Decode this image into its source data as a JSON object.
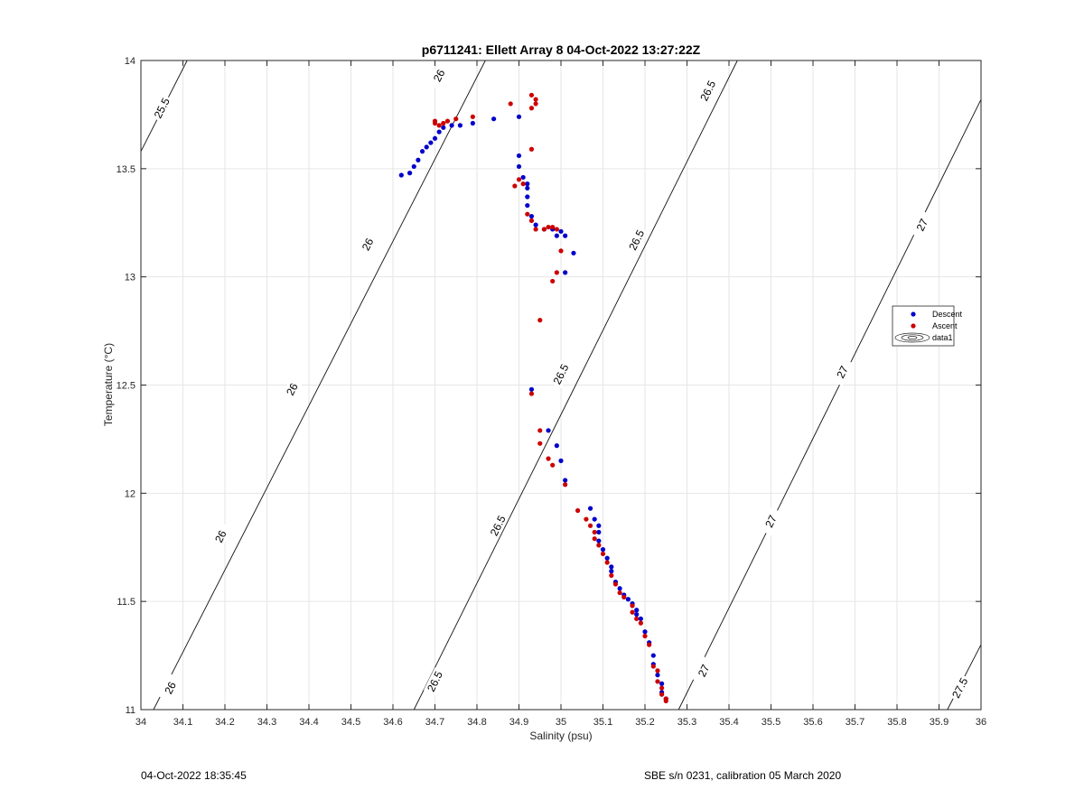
{
  "chart_data": {
    "type": "scatter",
    "title": "p6711241: Ellett Array 8 04-Oct-2022 13:27:22Z",
    "xlabel": "Salinity (psu)",
    "ylabel": "Temperature (°C)",
    "xlim": [
      34,
      36
    ],
    "ylim": [
      11,
      14
    ],
    "grid": true,
    "legend_position": "right",
    "x_ticks": [
      "34",
      "34.1",
      "34.2",
      "34.3",
      "34.4",
      "34.5",
      "34.6",
      "34.7",
      "34.8",
      "34.9",
      "35",
      "35.1",
      "35.2",
      "35.3",
      "35.4",
      "35.5",
      "35.6",
      "35.7",
      "35.8",
      "35.9",
      "36"
    ],
    "y_ticks": [
      "11",
      "11.5",
      "12",
      "12.5",
      "13",
      "13.5",
      "14"
    ],
    "legend": [
      "Descent",
      "Ascent",
      "data1"
    ],
    "series": [
      {
        "name": "Descent",
        "color": "#0000cc",
        "points": [
          [
            34.62,
            13.47
          ],
          [
            34.64,
            13.48
          ],
          [
            34.65,
            13.51
          ],
          [
            34.66,
            13.54
          ],
          [
            34.67,
            13.58
          ],
          [
            34.68,
            13.6
          ],
          [
            34.69,
            13.62
          ],
          [
            34.7,
            13.64
          ],
          [
            34.71,
            13.67
          ],
          [
            34.72,
            13.69
          ],
          [
            34.74,
            13.7
          ],
          [
            34.76,
            13.7
          ],
          [
            34.79,
            13.71
          ],
          [
            34.84,
            13.73
          ],
          [
            34.9,
            13.74
          ],
          [
            34.9,
            13.56
          ],
          [
            34.9,
            13.51
          ],
          [
            34.91,
            13.46
          ],
          [
            34.92,
            13.43
          ],
          [
            34.92,
            13.41
          ],
          [
            34.92,
            13.37
          ],
          [
            34.92,
            13.33
          ],
          [
            34.93,
            13.28
          ],
          [
            34.94,
            13.24
          ],
          [
            34.96,
            13.22
          ],
          [
            34.98,
            13.22
          ],
          [
            34.99,
            13.19
          ],
          [
            35.0,
            13.21
          ],
          [
            35.01,
            13.19
          ],
          [
            35.03,
            13.11
          ],
          [
            35.01,
            13.02
          ],
          [
            34.93,
            12.48
          ],
          [
            34.97,
            12.29
          ],
          [
            34.99,
            12.22
          ],
          [
            35.0,
            12.15
          ],
          [
            35.01,
            12.06
          ],
          [
            35.07,
            11.93
          ],
          [
            35.08,
            11.88
          ],
          [
            35.09,
            11.85
          ],
          [
            35.09,
            11.82
          ],
          [
            35.09,
            11.78
          ],
          [
            35.1,
            11.74
          ],
          [
            35.11,
            11.7
          ],
          [
            35.12,
            11.66
          ],
          [
            35.12,
            11.64
          ],
          [
            35.13,
            11.59
          ],
          [
            35.14,
            11.56
          ],
          [
            35.15,
            11.53
          ],
          [
            35.16,
            11.51
          ],
          [
            35.17,
            11.49
          ],
          [
            35.18,
            11.46
          ],
          [
            35.18,
            11.44
          ],
          [
            35.19,
            11.42
          ],
          [
            35.2,
            11.36
          ],
          [
            35.21,
            11.31
          ],
          [
            35.22,
            11.25
          ],
          [
            35.22,
            11.21
          ],
          [
            35.23,
            11.16
          ],
          [
            35.24,
            11.12
          ],
          [
            35.24,
            11.08
          ],
          [
            35.25,
            11.05
          ]
        ]
      },
      {
        "name": "Ascent",
        "color": "#cc0000",
        "points": [
          [
            34.7,
            13.72
          ],
          [
            34.7,
            13.71
          ],
          [
            34.71,
            13.7
          ],
          [
            34.72,
            13.71
          ],
          [
            34.73,
            13.72
          ],
          [
            34.75,
            13.73
          ],
          [
            34.79,
            13.74
          ],
          [
            34.88,
            13.8
          ],
          [
            34.93,
            13.84
          ],
          [
            34.94,
            13.82
          ],
          [
            34.94,
            13.8
          ],
          [
            34.93,
            13.78
          ],
          [
            34.93,
            13.59
          ],
          [
            34.91,
            13.43
          ],
          [
            34.89,
            13.42
          ],
          [
            34.9,
            13.45
          ],
          [
            34.92,
            13.29
          ],
          [
            34.93,
            13.26
          ],
          [
            34.94,
            13.22
          ],
          [
            34.96,
            13.22
          ],
          [
            34.97,
            13.23
          ],
          [
            34.98,
            13.23
          ],
          [
            34.99,
            13.22
          ],
          [
            35.0,
            13.12
          ],
          [
            34.99,
            13.02
          ],
          [
            34.98,
            12.98
          ],
          [
            34.95,
            12.8
          ],
          [
            34.93,
            12.46
          ],
          [
            34.95,
            12.29
          ],
          [
            34.95,
            12.23
          ],
          [
            34.97,
            12.16
          ],
          [
            34.98,
            12.13
          ],
          [
            35.01,
            12.04
          ],
          [
            35.04,
            11.92
          ],
          [
            35.06,
            11.88
          ],
          [
            35.07,
            11.85
          ],
          [
            35.08,
            11.82
          ],
          [
            35.08,
            11.79
          ],
          [
            35.09,
            11.76
          ],
          [
            35.1,
            11.72
          ],
          [
            35.11,
            11.68
          ],
          [
            35.12,
            11.62
          ],
          [
            35.13,
            11.58
          ],
          [
            35.14,
            11.54
          ],
          [
            35.15,
            11.52
          ],
          [
            35.17,
            11.48
          ],
          [
            35.17,
            11.45
          ],
          [
            35.18,
            11.42
          ],
          [
            35.19,
            11.4
          ],
          [
            35.2,
            11.34
          ],
          [
            35.21,
            11.3
          ],
          [
            35.22,
            11.2
          ],
          [
            35.23,
            11.18
          ],
          [
            35.23,
            11.13
          ],
          [
            35.24,
            11.1
          ],
          [
            35.24,
            11.07
          ],
          [
            35.25,
            11.05
          ],
          [
            35.25,
            11.04
          ]
        ]
      }
    ],
    "contours": [
      {
        "level": "25.5",
        "segments": [
          [
            [
              34.0,
              13.58
            ],
            [
              34.11,
              14.0
            ]
          ]
        ],
        "labels": [
          [
            34.05,
            13.78
          ]
        ]
      },
      {
        "level": "26",
        "segments": [
          [
            [
              34.03,
              11.0
            ],
            [
              34.82,
              14.0
            ]
          ]
        ],
        "labels": [
          [
            34.07,
            11.1
          ],
          [
            34.19,
            11.8
          ],
          [
            34.36,
            12.48
          ],
          [
            34.54,
            13.15
          ],
          [
            34.71,
            13.93
          ]
        ]
      },
      {
        "level": "26.5",
        "segments": [
          [
            [
              34.65,
              11.0
            ],
            [
              35.42,
              14.0
            ]
          ]
        ],
        "labels": [
          [
            34.7,
            11.13
          ],
          [
            34.85,
            11.85
          ],
          [
            35.0,
            12.55
          ],
          [
            35.18,
            13.17
          ],
          [
            35.35,
            13.86
          ]
        ]
      },
      {
        "level": "27",
        "segments": [
          [
            [
              35.28,
              11.0
            ],
            [
              36.0,
              13.82
            ]
          ]
        ],
        "labels": [
          [
            35.34,
            11.18
          ],
          [
            35.5,
            11.87
          ],
          [
            35.67,
            12.56
          ],
          [
            35.86,
            13.24
          ]
        ]
      },
      {
        "level": "27.5",
        "segments": [
          [
            [
              35.92,
              11.0
            ],
            [
              36.0,
              11.3
            ]
          ]
        ],
        "labels": [
          [
            35.95,
            11.1
          ]
        ]
      }
    ]
  },
  "footer": {
    "left": "04-Oct-2022 18:35:45",
    "right": "SBE s/n 0231, calibration 05 March 2020"
  }
}
